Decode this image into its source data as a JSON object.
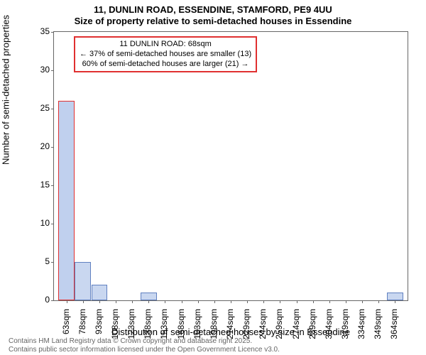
{
  "title_line1": "11, DUNLIN ROAD, ESSENDINE, STAMFORD, PE9 4UU",
  "title_line2": "Size of property relative to semi-detached houses in Essendine",
  "ylabel": "Number of semi-detached properties",
  "xlabel": "Distribution of semi-detached houses by size in Essendine",
  "footer_line1": "Contains HM Land Registry data © Crown copyright and database right 2025.",
  "footer_line2": "Contains public sector information licensed under the Open Government Licence v3.0.",
  "chart": {
    "type": "bar",
    "ylim": [
      0,
      35
    ],
    "yticks": [
      0,
      5,
      10,
      15,
      20,
      25,
      30,
      35
    ],
    "x_tick_labels": [
      "63sqm",
      "78sqm",
      "93sqm",
      "108sqm",
      "123sqm",
      "138sqm",
      "153sqm",
      "168sqm",
      "183sqm",
      "198sqm",
      "214sqm",
      "229sqm",
      "244sqm",
      "259sqm",
      "274sqm",
      "289sqm",
      "304sqm",
      "319sqm",
      "334sqm",
      "349sqm",
      "364sqm"
    ],
    "values": [
      26,
      5,
      2,
      0,
      0,
      1,
      0,
      0,
      0,
      0,
      0,
      0,
      0,
      0,
      0,
      0,
      0,
      0,
      0,
      0,
      1
    ],
    "bar_fill": "#c9d7f0",
    "bar_stroke": "#6080c0",
    "highlight_index": 0,
    "highlight_fill": "#c0d0ee",
    "highlight_stroke": "#e03030",
    "axis_color": "#666666",
    "background": "#ffffff",
    "title_fontsize": 13,
    "label_fontsize": 13,
    "tick_fontsize": 12,
    "callout_fontsize": 11
  },
  "callout": {
    "line1": "11 DUNLIN ROAD: 68sqm",
    "line2": "← 37% of semi-detached houses are smaller (13)",
    "line3": "60% of semi-detached houses are larger (21) →"
  }
}
